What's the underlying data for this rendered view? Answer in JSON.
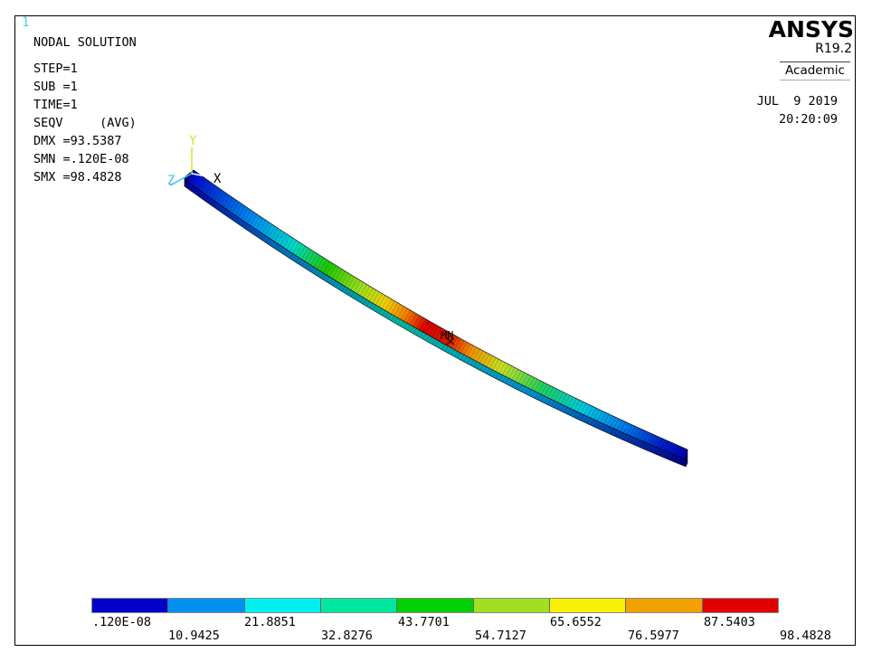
{
  "window_number": "1",
  "info": {
    "title": "NODAL SOLUTION",
    "step": "STEP=1",
    "sub": "SUB =1",
    "time": "TIME=1",
    "result": "SEQV     (AVG)",
    "dmx": "DMX =93.5387",
    "smn": "SMN =.120E-08",
    "smx": "SMX =98.4828"
  },
  "branding": {
    "logo": "ANSYS",
    "version": "R19.2",
    "edition": "Academic"
  },
  "datetime": {
    "date": "JUL  9 2019",
    "time": "20:20:09"
  },
  "triad": {
    "x_label": "X",
    "y_label": "Y",
    "z_label": "Z",
    "x_color": "#ffffff",
    "y_color": "#c8e832",
    "z_color": "#3fc0e8"
  },
  "model": {
    "min_marker": "MN"
  },
  "legend": {
    "colors": [
      "#0000c8",
      "#0090f0",
      "#00f0f0",
      "#00e8a0",
      "#00d000",
      "#a0e020",
      "#f8f000",
      "#f0a000",
      "#e00000"
    ],
    "labels_top": [
      ".120E-08",
      "21.8851",
      "43.7701",
      "65.6552",
      "87.5403"
    ],
    "labels_bottom": [
      "10.9425",
      "32.8276",
      "54.7127",
      "76.5977",
      "98.4828"
    ]
  }
}
